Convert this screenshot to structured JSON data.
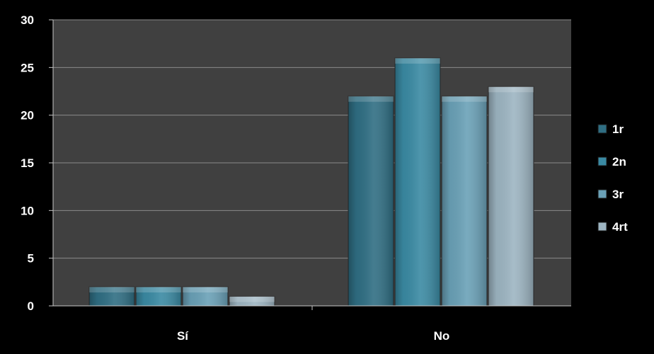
{
  "chart_data": {
    "type": "bar",
    "title": "",
    "xlabel": "",
    "ylabel": "",
    "categories": [
      "Sí",
      "No"
    ],
    "series": [
      {
        "name": "1r",
        "values": [
          2,
          22
        ],
        "color": "#2f6e83"
      },
      {
        "name": "2n",
        "values": [
          2,
          26
        ],
        "color": "#3a8aa3"
      },
      {
        "name": "3r",
        "values": [
          2,
          22
        ],
        "color": "#6aa1b7"
      },
      {
        "name": "4rt",
        "values": [
          1,
          23
        ],
        "color": "#9db5c2"
      }
    ],
    "ylim": [
      0,
      30
    ],
    "yticks": [
      "0",
      "5",
      "10",
      "15",
      "20",
      "25",
      "30"
    ],
    "grid": true,
    "legend_position": "right",
    "plot_background": "#404040",
    "background": "#000000",
    "gridline_color": "#8a8a8a"
  }
}
